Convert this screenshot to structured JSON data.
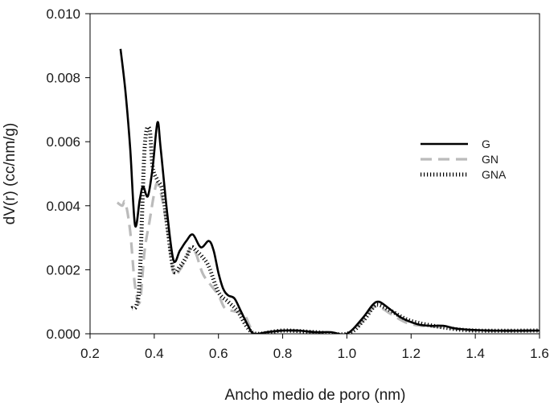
{
  "chart_data": {
    "type": "line",
    "xlabel": "Ancho medio de poro (nm)",
    "ylabel": "dV(r) (cc/nm/g)",
    "xlim": [
      0.2,
      1.6
    ],
    "ylim": [
      0.0,
      0.01
    ],
    "x_ticks": [
      "0.2",
      "0.4",
      "0.6",
      "0.8",
      "1.0",
      "1.2",
      "1.4",
      "1.6"
    ],
    "y_ticks": [
      "0.000",
      "0.002",
      "0.004",
      "0.006",
      "0.008",
      "0.010"
    ],
    "grid": false,
    "legend_position": "right",
    "series": [
      {
        "name": "G",
        "style": "solid",
        "color": "#000000",
        "points": [
          [
            0.295,
            0.0089
          ],
          [
            0.31,
            0.0076
          ],
          [
            0.325,
            0.0058
          ],
          [
            0.34,
            0.0034
          ],
          [
            0.355,
            0.0042
          ],
          [
            0.365,
            0.0046
          ],
          [
            0.38,
            0.0043
          ],
          [
            0.395,
            0.0052
          ],
          [
            0.41,
            0.0066
          ],
          [
            0.42,
            0.0058
          ],
          [
            0.44,
            0.0038
          ],
          [
            0.46,
            0.0023
          ],
          [
            0.48,
            0.0026
          ],
          [
            0.5,
            0.0029
          ],
          [
            0.52,
            0.0031
          ],
          [
            0.545,
            0.0027
          ],
          [
            0.57,
            0.0029
          ],
          [
            0.585,
            0.0026
          ],
          [
            0.6,
            0.0019
          ],
          [
            0.615,
            0.0014
          ],
          [
            0.63,
            0.0012
          ],
          [
            0.65,
            0.0011
          ],
          [
            0.67,
            0.0007
          ],
          [
            0.69,
            0.0003
          ],
          [
            0.71,
            0.0
          ],
          [
            0.75,
            5e-05
          ],
          [
            0.8,
            0.0001
          ],
          [
            0.85,
            0.0001
          ],
          [
            0.9,
            5e-05
          ],
          [
            0.95,
            5e-05
          ],
          [
            1.0,
            0.0
          ],
          [
            1.05,
            0.0005
          ],
          [
            1.08,
            0.0009
          ],
          [
            1.1,
            0.001
          ],
          [
            1.13,
            0.0008
          ],
          [
            1.17,
            0.0005
          ],
          [
            1.22,
            0.0003
          ],
          [
            1.26,
            0.00025
          ],
          [
            1.3,
            0.00025
          ],
          [
            1.35,
            0.00015
          ],
          [
            1.45,
            0.0001
          ],
          [
            1.6,
            0.0001
          ]
        ]
      },
      {
        "name": "GN",
        "style": "dashed",
        "color": "#bbbbbb",
        "points": [
          [
            0.285,
            0.0041
          ],
          [
            0.3,
            0.004
          ],
          [
            0.31,
            0.0041
          ],
          [
            0.325,
            0.0032
          ],
          [
            0.34,
            0.0015
          ],
          [
            0.355,
            0.001
          ],
          [
            0.37,
            0.0026
          ],
          [
            0.385,
            0.0035
          ],
          [
            0.4,
            0.0044
          ],
          [
            0.41,
            0.0047
          ],
          [
            0.425,
            0.0042
          ],
          [
            0.44,
            0.0033
          ],
          [
            0.46,
            0.0019
          ],
          [
            0.48,
            0.002
          ],
          [
            0.5,
            0.0024
          ],
          [
            0.515,
            0.0027
          ],
          [
            0.53,
            0.0025
          ],
          [
            0.55,
            0.0019
          ],
          [
            0.57,
            0.0016
          ],
          [
            0.6,
            0.0012
          ],
          [
            0.62,
            0.0008
          ],
          [
            0.65,
            0.0007
          ],
          [
            0.68,
            0.0006
          ],
          [
            0.7,
            0.0002
          ],
          [
            0.72,
            0.0
          ],
          [
            0.8,
            0.0001
          ],
          [
            0.9,
            5e-05
          ],
          [
            1.0,
            0.0
          ],
          [
            1.05,
            0.0004
          ],
          [
            1.08,
            0.0008
          ],
          [
            1.1,
            0.00085
          ],
          [
            1.14,
            0.0006
          ],
          [
            1.2,
            0.0003
          ],
          [
            1.3,
            0.0002
          ],
          [
            1.4,
            0.0001
          ],
          [
            1.6,
            0.0001
          ]
        ]
      },
      {
        "name": "GNA",
        "style": "dotted",
        "color": "#000000",
        "points": [
          [
            0.33,
            0.0008
          ],
          [
            0.345,
            0.0009
          ],
          [
            0.355,
            0.0018
          ],
          [
            0.37,
            0.0058
          ],
          [
            0.385,
            0.0064
          ],
          [
            0.395,
            0.0052
          ],
          [
            0.41,
            0.0048
          ],
          [
            0.425,
            0.0045
          ],
          [
            0.44,
            0.0034
          ],
          [
            0.46,
            0.002
          ],
          [
            0.48,
            0.0021
          ],
          [
            0.5,
            0.0024
          ],
          [
            0.515,
            0.0027
          ],
          [
            0.53,
            0.0026
          ],
          [
            0.55,
            0.0024
          ],
          [
            0.57,
            0.0021
          ],
          [
            0.6,
            0.0013
          ],
          [
            0.63,
            0.001
          ],
          [
            0.66,
            0.0007
          ],
          [
            0.69,
            0.0002
          ],
          [
            0.72,
            0.0
          ],
          [
            0.8,
            0.0001
          ],
          [
            0.9,
            5e-05
          ],
          [
            1.0,
            0.0
          ],
          [
            1.05,
            0.0004
          ],
          [
            1.08,
            0.0008
          ],
          [
            1.1,
            0.0009
          ],
          [
            1.14,
            0.0007
          ],
          [
            1.2,
            0.0004
          ],
          [
            1.3,
            0.0002
          ],
          [
            1.4,
            0.0001
          ],
          [
            1.6,
            0.0001
          ]
        ]
      }
    ]
  }
}
